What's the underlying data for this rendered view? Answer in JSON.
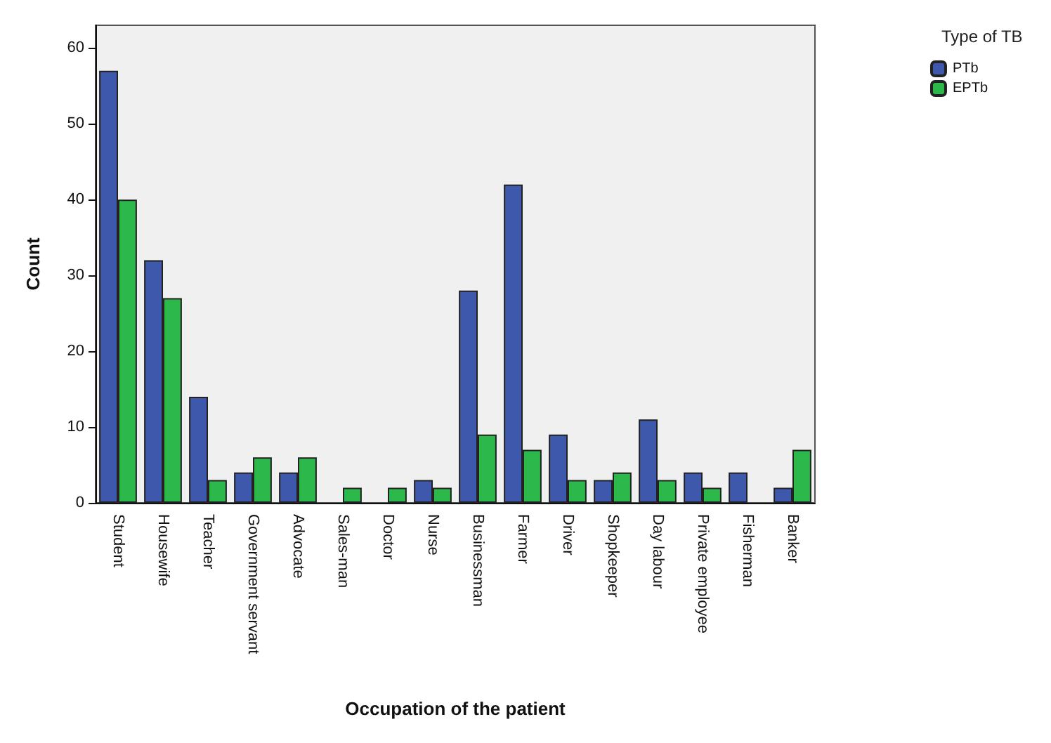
{
  "chart_data": {
    "type": "bar",
    "xlabel": "Occupation of the patient",
    "ylabel": "Count",
    "legend_title": "Type of TB",
    "legend": "top right",
    "categories": [
      "Student",
      "Housewife",
      "Teacher",
      "Government servant",
      "Advocate",
      "Sales-man",
      "Doctor",
      "Nurse",
      "Businessman",
      "Farmer",
      "Driver",
      "Shopkeeper",
      "Day labour",
      "Private employee",
      "Fisherman",
      "Banker"
    ],
    "series": [
      {
        "name": "PTb",
        "color": "#3e58ac",
        "values": [
          57,
          32,
          14,
          4,
          4,
          0,
          0,
          3,
          28,
          42,
          9,
          3,
          11,
          4,
          4,
          2
        ]
      },
      {
        "name": "EPTb",
        "color": "#2db84b",
        "values": [
          40,
          27,
          3,
          6,
          6,
          2,
          2,
          2,
          9,
          7,
          3,
          4,
          3,
          2,
          0,
          7
        ]
      }
    ],
    "ylim": [
      0,
      63
    ],
    "yticks": [
      0,
      10,
      20,
      30,
      40,
      50,
      60
    ],
    "grid": false
  }
}
